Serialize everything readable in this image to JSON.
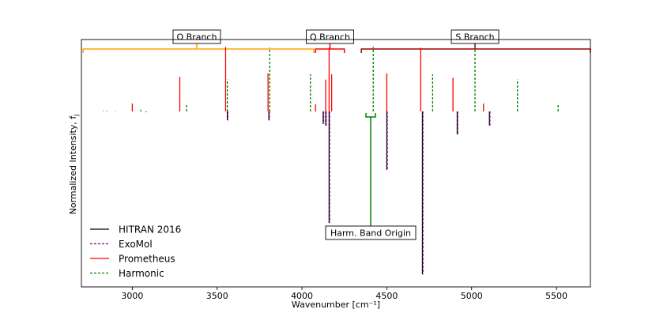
{
  "chart_data": {
    "type": "line",
    "xlabel": "Wavenumber [cm⁻¹]",
    "ylabel": "Normalized Intensity, f",
    "ylabel_sub": "j",
    "xlim": [
      2700,
      5700
    ],
    "ylim": [
      -1.0,
      0.42
    ],
    "xticks": [
      3000,
      3500,
      4000,
      4500,
      5000,
      5500
    ],
    "colors": {
      "hitran": "#000000",
      "exomol": "#800080",
      "prometheus": "#ff0000",
      "harmonic": "#008000",
      "o_branch": "#ffa500",
      "q_branch": "#ff0000",
      "s_branch": "#a00000",
      "band_origin": "#008000"
    },
    "legend": [
      {
        "name": "HITRAN 2016",
        "style": "solid",
        "color": "#000000"
      },
      {
        "name": "ExoMol",
        "style": "dashed",
        "color": "#800080"
      },
      {
        "name": "Prometheus",
        "style": "solid",
        "color": "#ff0000"
      },
      {
        "name": "Harmonic",
        "style": "dashed",
        "color": "#008000"
      }
    ],
    "series": [
      {
        "key": "prometheus",
        "x": [
          2830,
          2900,
          3000,
          3280,
          3550,
          3800,
          4080,
          4140,
          4160,
          4175,
          4500,
          4700,
          4890,
          5070
        ],
        "values": [
          0.003,
          0.002,
          0.045,
          0.195,
          0.365,
          0.215,
          0.04,
          0.18,
          0.36,
          0.21,
          0.215,
          0.36,
          0.19,
          0.045
        ]
      },
      {
        "key": "harmonic",
        "x": [
          2850,
          3050,
          3320,
          3560,
          3810,
          4050,
          4420,
          4770,
          5020,
          5270,
          5510,
          5700
        ],
        "values": [
          0.003,
          0.01,
          0.045,
          0.18,
          0.36,
          0.21,
          0.365,
          0.21,
          0.365,
          0.18,
          0.045,
          0.003
        ]
      },
      {
        "key": "hitran",
        "x": [
          3080,
          3560,
          3805,
          4125,
          4140,
          4160,
          4500,
          4710,
          4915,
          5105
        ],
        "values": [
          -0.003,
          -0.05,
          -0.05,
          -0.07,
          -0.08,
          -0.63,
          -0.33,
          -0.92,
          -0.13,
          -0.08
        ]
      },
      {
        "key": "exomol",
        "x": [
          3082,
          3563,
          3808,
          4128,
          4143,
          4163,
          4503,
          4713,
          4918,
          5108
        ],
        "values": [
          -0.003,
          -0.05,
          -0.05,
          -0.07,
          -0.08,
          -0.63,
          -0.33,
          -0.92,
          -0.13,
          -0.08
        ]
      }
    ],
    "branches": [
      {
        "label": "O Branch",
        "x0": 2710,
        "x1": 4070,
        "label_x": 3380,
        "key": "o_branch"
      },
      {
        "label": "Q Branch",
        "x0": 4080,
        "x1": 4250,
        "label_x": 4165,
        "key": "q_branch"
      },
      {
        "label": "S Branch",
        "x0": 4350,
        "x1": 5700,
        "label_x": 5020,
        "key": "s_branch"
      }
    ],
    "band_origin": {
      "label": "Harm. Band Origin",
      "x": 4405
    }
  }
}
